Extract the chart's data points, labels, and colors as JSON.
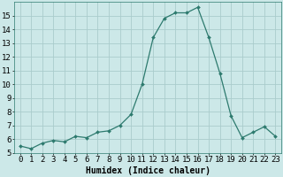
{
  "x": [
    0,
    1,
    2,
    3,
    4,
    5,
    6,
    7,
    8,
    9,
    10,
    11,
    12,
    13,
    14,
    15,
    16,
    17,
    18,
    19,
    20,
    21,
    22,
    23
  ],
  "y": [
    5.5,
    5.3,
    5.7,
    5.9,
    5.8,
    6.2,
    6.1,
    6.5,
    6.6,
    7.0,
    7.8,
    10.0,
    13.4,
    14.8,
    15.2,
    15.2,
    15.6,
    13.4,
    10.8,
    7.7,
    6.1,
    6.5,
    6.9,
    6.2
  ],
  "xlabel": "Humidex (Indice chaleur)",
  "ylim": [
    5,
    16
  ],
  "yticks": [
    5,
    6,
    7,
    8,
    9,
    10,
    11,
    12,
    13,
    14,
    15
  ],
  "xticks": [
    0,
    1,
    2,
    3,
    4,
    5,
    6,
    7,
    8,
    9,
    10,
    11,
    12,
    13,
    14,
    15,
    16,
    17,
    18,
    19,
    20,
    21,
    22,
    23
  ],
  "xtick_labels": [
    "0",
    "1",
    "2",
    "3",
    "4",
    "5",
    "6",
    "7",
    "8",
    "9",
    "10",
    "11",
    "12",
    "13",
    "14",
    "15",
    "16",
    "17",
    "18",
    "19",
    "20",
    "21",
    "22",
    "23"
  ],
  "line_color": "#2d7a6e",
  "marker_color": "#2d7a6e",
  "bg_color": "#cce8e8",
  "grid_color": "#aacccc",
  "xlabel_fontsize": 7,
  "tick_fontsize": 6.5
}
